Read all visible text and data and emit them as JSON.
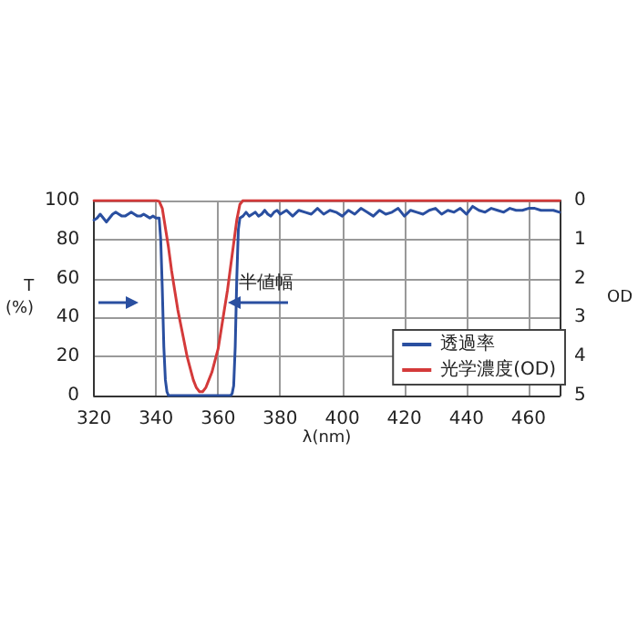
{
  "chart_data": {
    "type": "line",
    "xlabel": "λ(nm)",
    "ylabel": "T\n(%)",
    "y2label": "OD",
    "xlim": [
      320,
      470
    ],
    "xticks": [
      320,
      340,
      360,
      380,
      400,
      420,
      440,
      460
    ],
    "ylim": [
      0,
      100
    ],
    "yticks": [
      0,
      20,
      40,
      60,
      80,
      100
    ],
    "y2lim": [
      5,
      0
    ],
    "y2ticks": [
      0,
      1,
      2,
      3,
      4,
      5
    ],
    "grid": true,
    "legend": "bottom right",
    "marker": "none",
    "line_style": "solid",
    "annotations": [
      "半値幅"
    ],
    "series": [
      {
        "name": "透過率",
        "color": "#2a4fa0",
        "x": [
          320,
          321,
          322,
          323,
          324,
          325,
          326,
          327,
          328,
          329,
          330,
          331,
          332,
          333,
          334,
          335,
          336,
          337,
          338,
          339,
          340,
          341,
          341.5,
          342,
          342.5,
          343,
          343.5,
          344,
          364,
          364.5,
          365,
          365.5,
          366,
          366.5,
          367,
          368,
          369,
          370,
          371,
          372,
          373,
          374,
          375,
          376,
          377,
          378,
          379,
          380,
          382,
          384,
          386,
          388,
          390,
          392,
          394,
          396,
          398,
          400,
          402,
          404,
          406,
          408,
          410,
          412,
          414,
          416,
          418,
          420,
          422,
          424,
          426,
          428,
          430,
          432,
          434,
          436,
          438,
          440,
          442,
          444,
          446,
          448,
          450,
          452,
          454,
          456,
          458,
          460,
          462,
          464,
          466,
          468,
          470
        ],
        "values": [
          90,
          91,
          93,
          91,
          89,
          91,
          93,
          94,
          93,
          92,
          92,
          93,
          94,
          93,
          92,
          92,
          93,
          92,
          91,
          92,
          91,
          91,
          80,
          55,
          25,
          8,
          2,
          0,
          0,
          1,
          5,
          25,
          60,
          85,
          91,
          92,
          94,
          92,
          93,
          94,
          92,
          93,
          95,
          93,
          92,
          94,
          95,
          93,
          95,
          92,
          95,
          94,
          93,
          96,
          93,
          95,
          94,
          92,
          95,
          93,
          96,
          94,
          92,
          95,
          93,
          94,
          96,
          92,
          95,
          94,
          93,
          95,
          96,
          93,
          95,
          94,
          96,
          93,
          97,
          95,
          94,
          96,
          95,
          94,
          96,
          95,
          95,
          96,
          96,
          95,
          95,
          95,
          94
        ]
      },
      {
        "name": "光学濃度(OD)",
        "color": "#d43a3a",
        "axis": "y2",
        "x": [
          320,
          330,
          340,
          341,
          342,
          343,
          344,
          345,
          346,
          347,
          348,
          349,
          350,
          351,
          352,
          353,
          354,
          355,
          356,
          357,
          358,
          359,
          360,
          361,
          362,
          363,
          364,
          365,
          366,
          367,
          368,
          380,
          400,
          420,
          440,
          460,
          470
        ],
        "values": [
          0,
          0,
          0,
          0.02,
          0.2,
          0.7,
          1.2,
          1.8,
          2.3,
          2.8,
          3.2,
          3.6,
          4.0,
          4.3,
          4.6,
          4.8,
          4.9,
          4.9,
          4.8,
          4.6,
          4.4,
          4.1,
          3.8,
          3.3,
          2.8,
          2.3,
          1.7,
          1.1,
          0.5,
          0.1,
          0,
          0,
          0,
          0,
          0,
          0,
          0
        ]
      }
    ]
  }
}
